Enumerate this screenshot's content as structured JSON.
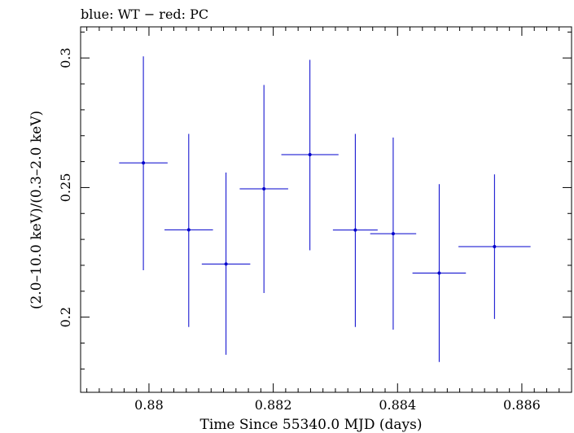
{
  "chart_data": {
    "type": "scatter",
    "title": "blue: WT − red: PC",
    "xlabel": "Time Since 55340.0 MJD (days)",
    "ylabel": "(2.0–10.0 keV)/(0.3–2.0 keV)",
    "xlim": [
      0.8789,
      0.8868
    ],
    "ylim": [
      0.171,
      0.312
    ],
    "xticks": [
      0.88,
      0.882,
      0.884,
      0.886
    ],
    "xtick_labels": [
      "0.88",
      "0.882",
      "0.884",
      "0.886"
    ],
    "yticks": [
      0.2,
      0.25,
      0.3
    ],
    "ytick_labels": [
      "0.2",
      "0.25",
      "0.3"
    ],
    "grid": false,
    "series": [
      {
        "name": "WT",
        "color": "#0000cc",
        "points": [
          {
            "x": 0.87991,
            "xerr": 0.00039,
            "y": 0.2595,
            "ylo": 0.2181,
            "yhi": 0.3006
          },
          {
            "x": 0.88064,
            "xerr": 0.00039,
            "y": 0.2337,
            "ylo": 0.1962,
            "yhi": 0.2707
          },
          {
            "x": 0.88124,
            "xerr": 0.00039,
            "y": 0.2205,
            "ylo": 0.1855,
            "yhi": 0.2558
          },
          {
            "x": 0.88185,
            "xerr": 0.00039,
            "y": 0.2495,
            "ylo": 0.2093,
            "yhi": 0.2896
          },
          {
            "x": 0.88259,
            "xerr": 0.00046,
            "y": 0.2627,
            "ylo": 0.2258,
            "yhi": 0.2993
          },
          {
            "x": 0.88332,
            "xerr": 0.00036,
            "y": 0.2336,
            "ylo": 0.1962,
            "yhi": 0.2707
          },
          {
            "x": 0.88393,
            "xerr": 0.00037,
            "y": 0.2322,
            "ylo": 0.1952,
            "yhi": 0.2693
          },
          {
            "x": 0.88467,
            "xerr": 0.00043,
            "y": 0.217,
            "ylo": 0.1827,
            "yhi": 0.2513
          },
          {
            "x": 0.88556,
            "xerr": 0.00058,
            "y": 0.2272,
            "ylo": 0.1993,
            "yhi": 0.2551
          }
        ]
      }
    ]
  }
}
